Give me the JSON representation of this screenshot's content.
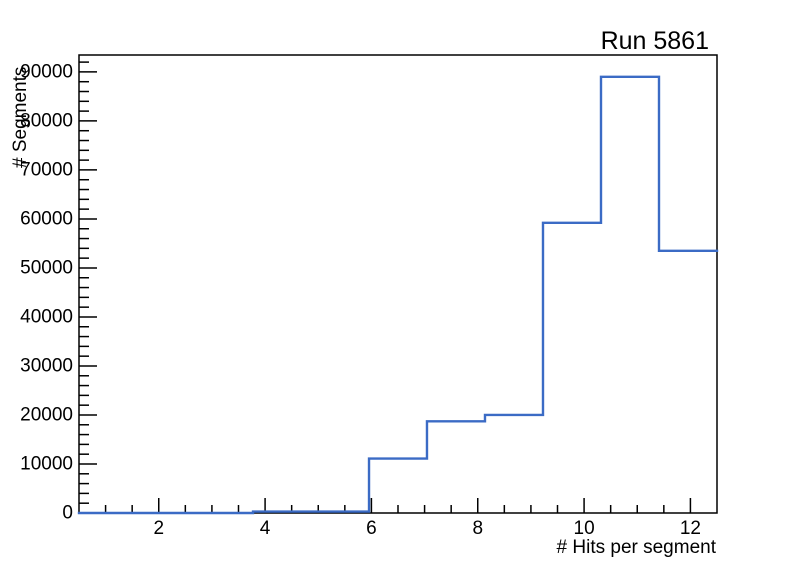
{
  "chart_data": {
    "type": "histogram",
    "title": "Run 5861",
    "xlabel": "# Hits per segment",
    "ylabel": "# Segments",
    "xlim": [
      0.5,
      12.5
    ],
    "ylim": [
      0,
      93450
    ],
    "grid": false,
    "legend": false,
    "n_bins": 11,
    "bin_edges": [
      0.5,
      1.591,
      2.682,
      3.773,
      4.864,
      5.955,
      7.045,
      8.136,
      9.227,
      10.318,
      11.409,
      12.5
    ],
    "values": [
      0,
      0,
      0,
      300,
      300,
      11100,
      18700,
      20000,
      59200,
      89000,
      53500
    ],
    "x_major_ticks": [
      2,
      4,
      6,
      8,
      10,
      12
    ],
    "x_tick_labels": [
      "2",
      "4",
      "6",
      "8",
      "10",
      "12"
    ],
    "x_minor_step": 0.5,
    "y_major_ticks": [
      0,
      10000,
      20000,
      30000,
      40000,
      50000,
      60000,
      70000,
      80000,
      90000
    ],
    "y_tick_labels": [
      "0",
      "10000",
      "20000",
      "30000",
      "40000",
      "50000",
      "60000",
      "70000",
      "80000",
      "90000"
    ],
    "y_minor_step": 2000,
    "colors": {
      "line": "#3b6bc5",
      "axis": "#000000",
      "text": "#000000",
      "background": "#ffffff"
    }
  }
}
